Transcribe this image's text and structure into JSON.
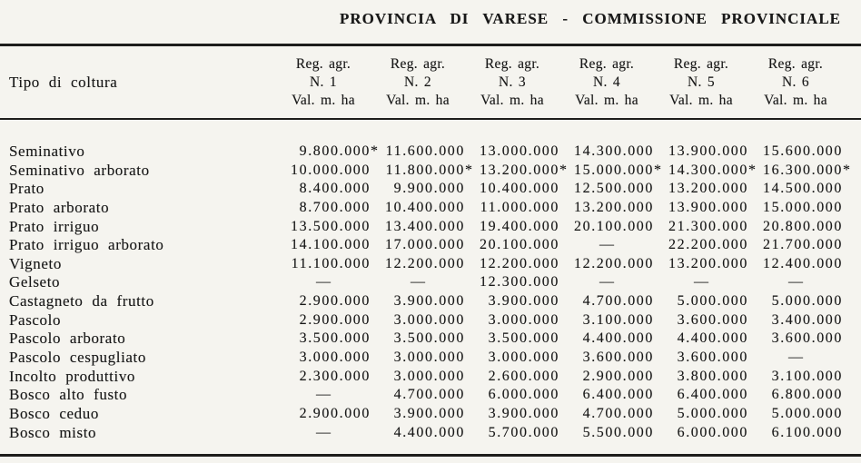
{
  "title": "PROVINCIA DI VARESE - COMMISSIONE PROVINCIALE",
  "table": {
    "row_header": "Tipo di coltura",
    "columns": [
      {
        "line1": "Reg. agr.",
        "line2": "N. 1",
        "line3": "Val. m. ha"
      },
      {
        "line1": "Reg. agr.",
        "line2": "N. 2",
        "line3": "Val. m. ha"
      },
      {
        "line1": "Reg. agr.",
        "line2": "N. 3",
        "line3": "Val. m. ha"
      },
      {
        "line1": "Reg. agr.",
        "line2": "N. 4",
        "line3": "Val. m. ha"
      },
      {
        "line1": "Reg. agr.",
        "line2": "N. 5",
        "line3": "Val. m. ha"
      },
      {
        "line1": "Reg. agr.",
        "line2": "N. 6",
        "line3": "Val. m. ha"
      }
    ],
    "rows": [
      {
        "label": "Seminativo",
        "values": [
          "9.800.000*",
          "11.600.000",
          "13.000.000",
          "14.300.000",
          "13.900.000",
          "15.600.000"
        ]
      },
      {
        "label": "Seminativo arborato",
        "values": [
          "10.000.000",
          "11.800.000*",
          "13.200.000*",
          "15.000.000*",
          "14.300.000*",
          "16.300.000*"
        ]
      },
      {
        "label": "Prato",
        "values": [
          "8.400.000",
          "9.900.000",
          "10.400.000",
          "12.500.000",
          "13.200.000",
          "14.500.000"
        ]
      },
      {
        "label": "Prato arborato",
        "values": [
          "8.700.000",
          "10.400.000",
          "11.000.000",
          "13.200.000",
          "13.900.000",
          "15.000.000"
        ]
      },
      {
        "label": "Prato irriguo",
        "values": [
          "13.500.000",
          "13.400.000",
          "19.400.000",
          "20.100.000",
          "21.300.000",
          "20.800.000"
        ]
      },
      {
        "label": "Prato irriguo arborato",
        "values": [
          "14.100.000",
          "17.000.000",
          "20.100.000",
          "—",
          "22.200.000",
          "21.700.000"
        ]
      },
      {
        "label": "Vigneto",
        "values": [
          "11.100.000",
          "12.200.000",
          "12.200.000",
          "12.200.000",
          "13.200.000",
          "12.400.000"
        ]
      },
      {
        "label": "Gelseto",
        "values": [
          "—",
          "—",
          "12.300.000",
          "—",
          "—",
          "—"
        ]
      },
      {
        "label": "Castagneto da frutto",
        "values": [
          "2.900.000",
          "3.900.000",
          "3.900.000",
          "4.700.000",
          "5.000.000",
          "5.000.000"
        ]
      },
      {
        "label": "Pascolo",
        "values": [
          "2.900.000",
          "3.000.000",
          "3.000.000",
          "3.100.000",
          "3.600.000",
          "3.400.000"
        ]
      },
      {
        "label": "Pascolo arborato",
        "values": [
          "3.500.000",
          "3.500.000",
          "3.500.000",
          "4.400.000",
          "4.400.000",
          "3.600.000"
        ]
      },
      {
        "label": "Pascolo cespugliato",
        "values": [
          "3.000.000",
          "3.000.000",
          "3.000.000",
          "3.600.000",
          "3.600.000",
          "—"
        ]
      },
      {
        "label": "Incolto produttivo",
        "values": [
          "2.300.000",
          "3.000.000",
          "2.600.000",
          "2.900.000",
          "3.800.000",
          "3.100.000"
        ]
      },
      {
        "label": "Bosco alto fusto",
        "values": [
          "—",
          "4.700.000",
          "6.000.000",
          "6.400.000",
          "6.400.000",
          "6.800.000"
        ]
      },
      {
        "label": "Bosco ceduo",
        "values": [
          "2.900.000",
          "3.900.000",
          "3.900.000",
          "4.700.000",
          "5.000.000",
          "5.000.000"
        ]
      },
      {
        "label": "Bosco misto",
        "values": [
          "—",
          "4.400.000",
          "5.700.000",
          "5.500.000",
          "6.000.000",
          "6.100.000"
        ]
      }
    ]
  }
}
